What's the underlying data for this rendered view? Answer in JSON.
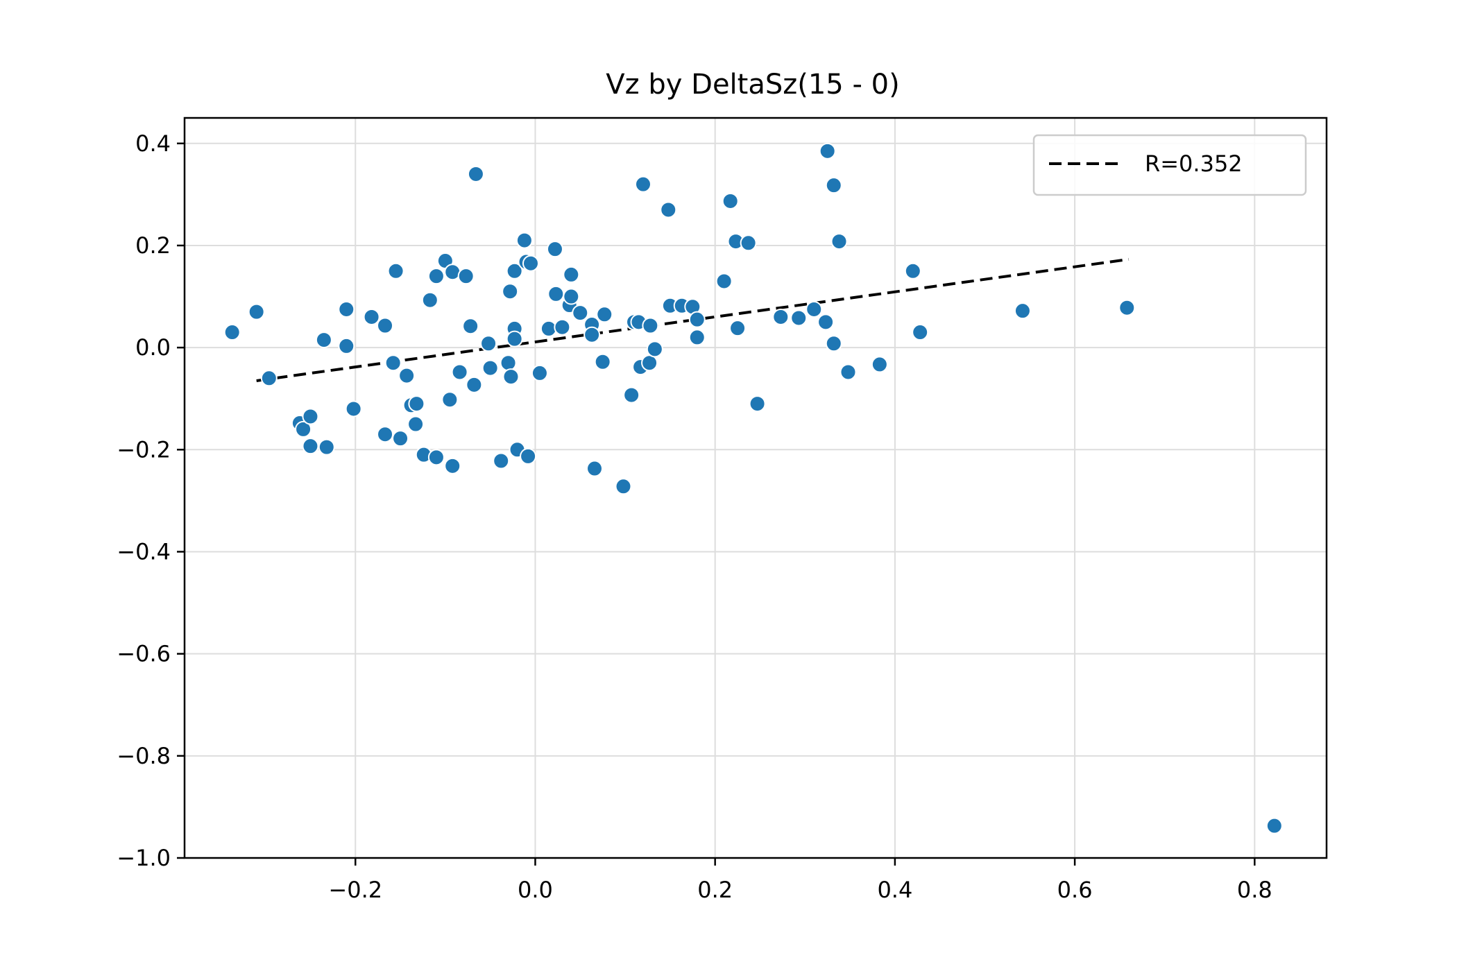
{
  "chart_data": {
    "type": "scatter",
    "title": "Vz by DeltaSz(15 - 0)",
    "xlabel": "",
    "ylabel": "",
    "xlim": [
      -0.39,
      0.88
    ],
    "ylim": [
      -1.0,
      0.45
    ],
    "x_ticks": [
      -0.2,
      0.0,
      0.2,
      0.4,
      0.6,
      0.8
    ],
    "x_tick_labels": [
      "−0.2",
      "0.0",
      "0.2",
      "0.4",
      "0.6",
      "0.8"
    ],
    "y_ticks": [
      0.4,
      0.2,
      0.0,
      -0.2,
      -0.4,
      -0.6,
      -0.8,
      -1.0
    ],
    "y_tick_labels": [
      "0.4",
      "0.2",
      "0.0",
      "−0.2",
      "−0.4",
      "−0.6",
      "−0.8",
      "−1.0"
    ],
    "grid": true,
    "legend": {
      "position": "top-right",
      "entries": [
        "R=0.352"
      ]
    },
    "colors": {
      "points": "#1f77b4",
      "trend": "#000000",
      "grid": "#dddddd"
    },
    "trend_line": {
      "style": "dashed",
      "x": [
        -0.31,
        0.66
      ],
      "y": [
        -0.065,
        0.173
      ]
    },
    "points": [
      [
        -0.337,
        0.03
      ],
      [
        -0.31,
        0.07
      ],
      [
        -0.296,
        -0.06
      ],
      [
        -0.262,
        -0.148
      ],
      [
        -0.258,
        -0.16
      ],
      [
        -0.25,
        -0.135
      ],
      [
        -0.25,
        -0.193
      ],
      [
        -0.232,
        -0.195
      ],
      [
        -0.235,
        0.015
      ],
      [
        -0.21,
        0.075
      ],
      [
        -0.21,
        0.003
      ],
      [
        -0.202,
        -0.12
      ],
      [
        -0.182,
        0.06
      ],
      [
        -0.167,
        0.043
      ],
      [
        -0.167,
        -0.17
      ],
      [
        -0.155,
        0.15
      ],
      [
        -0.158,
        -0.03
      ],
      [
        -0.15,
        -0.178
      ],
      [
        -0.143,
        -0.055
      ],
      [
        -0.138,
        -0.113
      ],
      [
        -0.132,
        -0.11
      ],
      [
        -0.133,
        -0.15
      ],
      [
        -0.124,
        -0.21
      ],
      [
        -0.117,
        0.093
      ],
      [
        -0.11,
        0.14
      ],
      [
        -0.11,
        -0.215
      ],
      [
        -0.1,
        0.17
      ],
      [
        -0.092,
        0.148
      ],
      [
        -0.092,
        -0.232
      ],
      [
        -0.095,
        -0.102
      ],
      [
        -0.084,
        -0.048
      ],
      [
        -0.077,
        0.14
      ],
      [
        -0.072,
        0.042
      ],
      [
        -0.068,
        -0.073
      ],
      [
        -0.066,
        0.34
      ],
      [
        -0.052,
        0.008
      ],
      [
        -0.05,
        -0.04
      ],
      [
        -0.038,
        -0.222
      ],
      [
        -0.028,
        0.11
      ],
      [
        -0.03,
        -0.03
      ],
      [
        -0.027,
        -0.057
      ],
      [
        -0.023,
        0.15
      ],
      [
        -0.023,
        0.037
      ],
      [
        -0.023,
        0.017
      ],
      [
        -0.02,
        -0.2
      ],
      [
        -0.012,
        0.21
      ],
      [
        -0.01,
        0.168
      ],
      [
        -0.008,
        -0.213
      ],
      [
        -0.005,
        0.165
      ],
      [
        0.005,
        -0.05
      ],
      [
        0.015,
        0.037
      ],
      [
        0.022,
        0.193
      ],
      [
        0.023,
        0.105
      ],
      [
        0.03,
        0.04
      ],
      [
        0.038,
        0.083
      ],
      [
        0.04,
        0.1
      ],
      [
        0.04,
        0.143
      ],
      [
        0.05,
        0.068
      ],
      [
        0.063,
        0.045
      ],
      [
        0.063,
        0.025
      ],
      [
        0.066,
        -0.237
      ],
      [
        0.075,
        -0.028
      ],
      [
        0.077,
        0.065
      ],
      [
        0.098,
        -0.272
      ],
      [
        0.107,
        -0.093
      ],
      [
        0.11,
        0.05
      ],
      [
        0.115,
        0.05
      ],
      [
        0.117,
        -0.038
      ],
      [
        0.12,
        0.32
      ],
      [
        0.127,
        -0.03
      ],
      [
        0.128,
        0.043
      ],
      [
        0.133,
        -0.003
      ],
      [
        0.148,
        0.27
      ],
      [
        0.15,
        0.082
      ],
      [
        0.163,
        0.082
      ],
      [
        0.175,
        0.08
      ],
      [
        0.18,
        0.055
      ],
      [
        0.18,
        0.02
      ],
      [
        0.21,
        0.13
      ],
      [
        0.217,
        0.287
      ],
      [
        0.223,
        0.208
      ],
      [
        0.225,
        0.038
      ],
      [
        0.237,
        0.205
      ],
      [
        0.247,
        -0.11
      ],
      [
        0.273,
        0.06
      ],
      [
        0.293,
        0.058
      ],
      [
        0.31,
        0.075
      ],
      [
        0.323,
        0.05
      ],
      [
        0.325,
        0.385
      ],
      [
        0.332,
        0.318
      ],
      [
        0.332,
        0.008
      ],
      [
        0.338,
        0.208
      ],
      [
        0.348,
        -0.048
      ],
      [
        0.383,
        -0.033
      ],
      [
        0.42,
        0.15
      ],
      [
        0.428,
        0.03
      ],
      [
        0.542,
        0.072
      ],
      [
        0.658,
        0.078
      ],
      [
        0.822,
        -0.937
      ]
    ]
  }
}
